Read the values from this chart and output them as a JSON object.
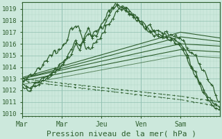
{
  "title": "",
  "xlabel": "Pression niveau de la mer( hPa )",
  "background_color": "#cce8dc",
  "plot_bg_color": "#cce8dc",
  "grid_color_minor": "#b0d8c8",
  "grid_color_major": "#90c0b0",
  "line_color": "#2d5e2d",
  "ylim": [
    1009.8,
    1019.6
  ],
  "yticks": [
    1010,
    1011,
    1012,
    1013,
    1014,
    1015,
    1016,
    1017,
    1018,
    1019
  ],
  "xtick_labels": [
    "Mar",
    "Mar",
    "Jeu",
    "Ven",
    "Sam"
  ],
  "xtick_positions": [
    0,
    48,
    96,
    144,
    192
  ],
  "total_hours": 240,
  "xlabel_fontsize": 8,
  "ytick_fontsize": 6.5,
  "xtick_fontsize": 7
}
